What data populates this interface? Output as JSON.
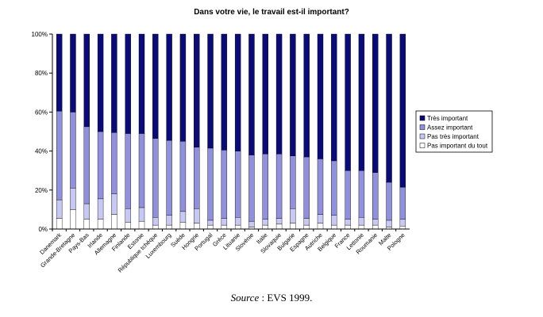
{
  "chart_data": {
    "type": "bar",
    "stacked": true,
    "percent": true,
    "title": "Dans votre vie, le travail est-il important?",
    "xlabel": "",
    "ylabel": "",
    "ylim": [
      0,
      100
    ],
    "y_ticks": [
      "0%",
      "20%",
      "40%",
      "60%",
      "80%",
      "100%"
    ],
    "legend_position": "right",
    "grid": false,
    "categories": [
      "Danemark",
      "Grande-Bretagne",
      "Pays-Bas",
      "Irlande",
      "Allemagne",
      "Finlande",
      "Estonie",
      "République tchèque",
      "Luxembourg",
      "Suède",
      "Hongrie",
      "Portugal",
      "Grèce",
      "Lituanie",
      "Slovénie",
      "Italie",
      "Slovaquie",
      "Bulgarie",
      "Espagne",
      "Autriche",
      "Belgique",
      "France",
      "Lettonie",
      "Roumanie",
      "Malte",
      "Pologne"
    ],
    "series": [
      {
        "name": "Pas important du tout",
        "color": "#ffffff",
        "values": [
          5.5,
          10,
          5,
          5,
          7.5,
          3.5,
          4,
          2,
          2,
          3.5,
          3,
          2,
          2,
          2,
          1,
          2,
          2.5,
          3,
          2,
          3,
          2,
          2,
          2,
          2,
          1,
          1.5
        ]
      },
      {
        "name": "Pas très important",
        "color": "#c8c8f5",
        "values": [
          9.5,
          11,
          8,
          10.5,
          10.5,
          7,
          7,
          4,
          5,
          5.5,
          7.5,
          2.5,
          3.5,
          4,
          3,
          3,
          3,
          7.5,
          3.5,
          4.5,
          5,
          3,
          4,
          3,
          3.5,
          3.5
        ]
      },
      {
        "name": "Assez important",
        "color": "#9090dd",
        "values": [
          45.5,
          39,
          39.5,
          34.5,
          31.5,
          38.5,
          38,
          40.5,
          38.5,
          36,
          31.5,
          37,
          35,
          34,
          34,
          33.5,
          33,
          27,
          31.5,
          28.5,
          28,
          25,
          24,
          24,
          19.5,
          16.5
        ]
      },
      {
        "name": "Très important",
        "color": "#0a0a78",
        "values": [
          39.5,
          40,
          47.5,
          50,
          50.5,
          51,
          51,
          53.5,
          54.5,
          55,
          58,
          58.5,
          59.5,
          60,
          62,
          61.5,
          61.5,
          62.5,
          63,
          64,
          65,
          70,
          70,
          71,
          76,
          78.5
        ]
      }
    ]
  },
  "source": {
    "prefix": "Source",
    "text": " : EVS 1999."
  }
}
